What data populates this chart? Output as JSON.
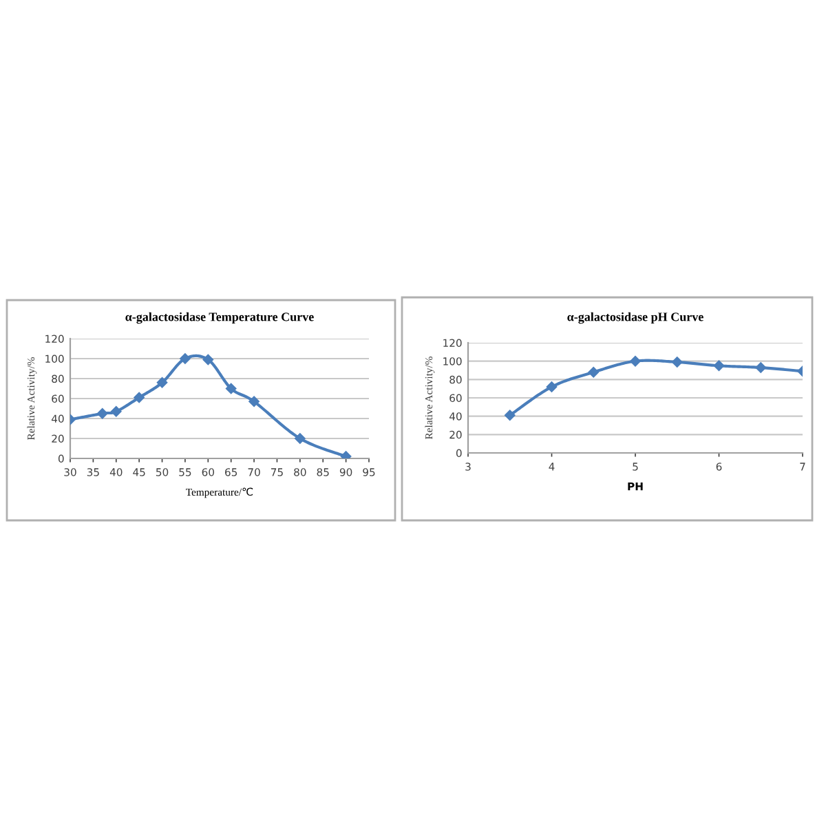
{
  "chart_data": [
    {
      "type": "line",
      "title": "α-galactosidase Temperature Curve",
      "xlabel": "Temperature/℃",
      "ylabel": "Relative Activity/%",
      "x": [
        30,
        37,
        40,
        45,
        50,
        55,
        60,
        65,
        70,
        80,
        90
      ],
      "series": [
        {
          "color": "#4a7ebb",
          "values": [
            39,
            45,
            47,
            61,
            76,
            100,
            99,
            70,
            57,
            20,
            2
          ]
        }
      ],
      "xlim": [
        30,
        95
      ],
      "xticks": [
        30,
        35,
        40,
        45,
        50,
        55,
        60,
        65,
        70,
        75,
        80,
        85,
        90,
        95
      ],
      "ylim": [
        0,
        120
      ],
      "yticks": [
        0,
        20,
        40,
        60,
        80,
        100,
        120
      ],
      "grid": "y",
      "marker": "diamond",
      "line_style": "solid"
    },
    {
      "type": "line",
      "title": "α-galactosidase pH Curve",
      "xlabel": "PH",
      "ylabel": "Relative Activity/%",
      "x": [
        3.5,
        4,
        4.5,
        5,
        5.5,
        6,
        6.5,
        7
      ],
      "series": [
        {
          "color": "#4a7ebb",
          "values": [
            41,
            72,
            88,
            100,
            99,
            95,
            93,
            89
          ]
        }
      ],
      "xlim": [
        3,
        7
      ],
      "xticks": [
        3,
        4,
        5,
        6,
        7
      ],
      "ylim": [
        0,
        120
      ],
      "yticks": [
        0,
        20,
        40,
        60,
        80,
        100,
        120
      ],
      "grid": "y",
      "marker": "diamond",
      "line_style": "solid"
    }
  ]
}
